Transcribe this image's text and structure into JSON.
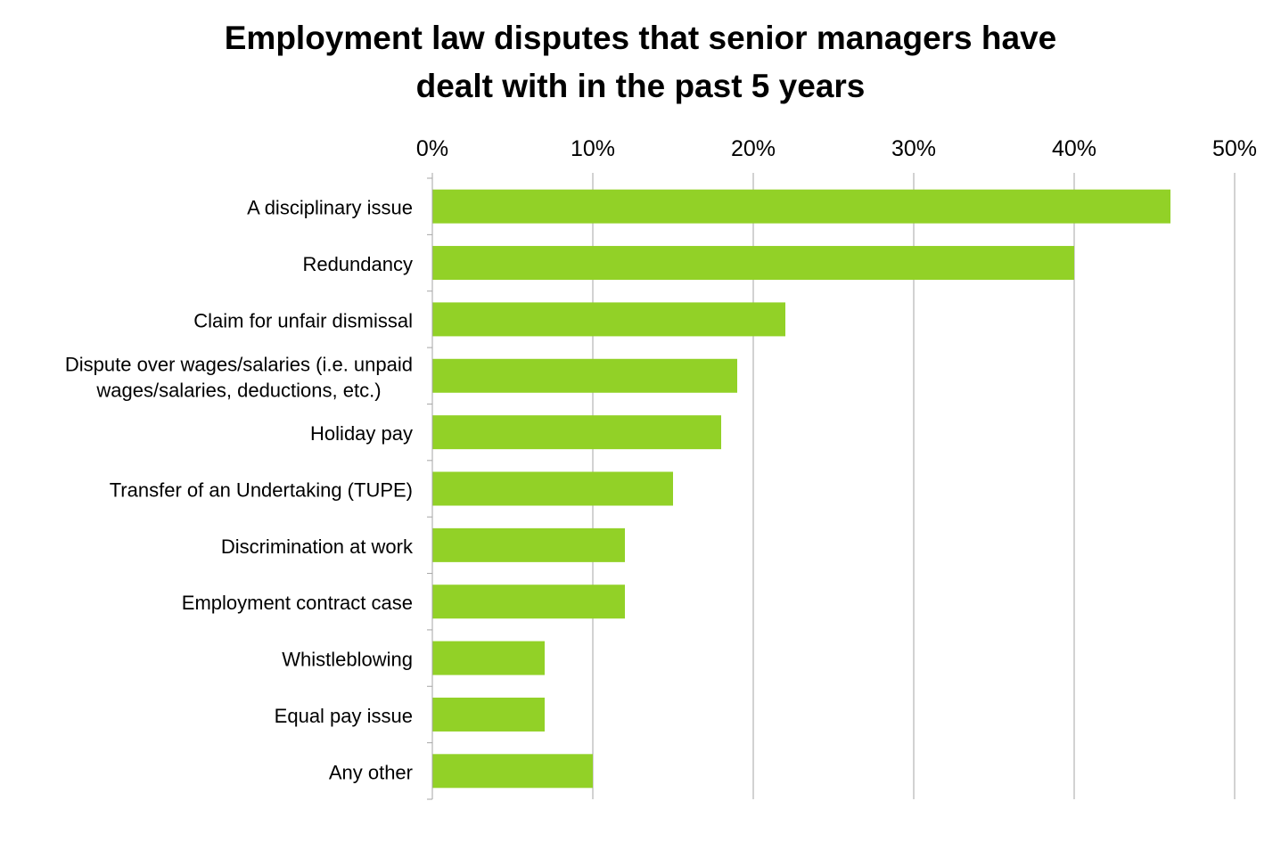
{
  "chart_data": {
    "type": "bar",
    "orientation": "horizontal",
    "title_lines": [
      "Employment law disputes that senior managers have",
      "dealt with in the past 5 years"
    ],
    "xlabel": "",
    "ylabel": "",
    "xlim": [
      0,
      50
    ],
    "x_ticks": [
      0,
      10,
      20,
      30,
      40,
      50
    ],
    "x_tick_labels": [
      "0%",
      "10%",
      "20%",
      "30%",
      "40%",
      "50%"
    ],
    "x_axis_position": "top",
    "grid": true,
    "legend": "none",
    "bar_color": "#92d127",
    "categories": [
      [
        "A disciplinary issue"
      ],
      [
        "Redundancy"
      ],
      [
        "Claim for unfair dismissal"
      ],
      [
        "Dispute over wages/salaries (i.e. unpaid",
        "wages/salaries, deductions, etc.)"
      ],
      [
        "Holiday pay"
      ],
      [
        "Transfer of an Undertaking (TUPE)"
      ],
      [
        "Discrimination at work"
      ],
      [
        "Employment contract case"
      ],
      [
        "Whistleblowing"
      ],
      [
        "Equal pay issue"
      ],
      [
        "Any other"
      ]
    ],
    "values": [
      46,
      40,
      22,
      19,
      18,
      15,
      12,
      12,
      7,
      7,
      10
    ]
  }
}
